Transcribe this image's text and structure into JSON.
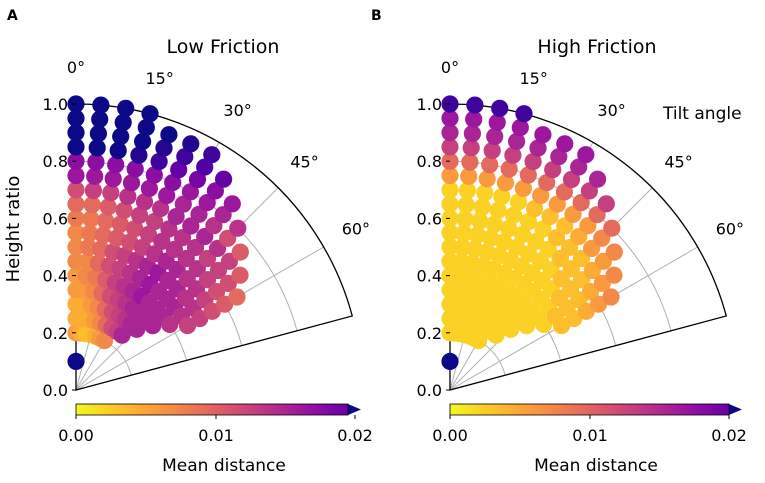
{
  "figure": {
    "y_axis_label": "Height ratio",
    "angle_axis_label": "Tilt angle",
    "radial_ticks": [
      "0.0",
      "0.2",
      "0.4",
      "0.6",
      "0.8",
      "1.0"
    ],
    "angle_ticks": [
      "0°",
      "15°",
      "30°",
      "45°",
      "60°"
    ]
  },
  "colorbar": {
    "label": "Mean distance",
    "ticks": [
      "0.00",
      "0.01",
      "0.02"
    ],
    "range": [
      0,
      0.021
    ],
    "colormap": "plasma"
  },
  "chart_data": [
    {
      "type": "polar-scatter",
      "panel_letter": "A",
      "title": "Low Friction",
      "rlabel": "Height ratio",
      "thetalabel": "Tilt angle",
      "rlim": [
        0,
        1.0
      ],
      "theta_range_deg": [
        0,
        75
      ],
      "theta_values_deg": [
        0,
        5,
        10,
        15,
        20,
        25,
        30,
        35,
        40,
        45,
        50,
        55,
        60
      ],
      "r_values": [
        0.1,
        0.2,
        0.25,
        0.3,
        0.35,
        0.4,
        0.45,
        0.5,
        0.55,
        0.6,
        0.65,
        0.7,
        0.75,
        0.8,
        0.85,
        0.9,
        0.95,
        1.0
      ],
      "color_metric": "Mean distance",
      "rows": [
        {
          "r": 0.1,
          "values": [
            0.021
          ]
        },
        {
          "r": 0.2,
          "values": [
            0.005,
            0.004,
            0.003,
            0.003,
            0.004,
            0.005,
            0.006
          ]
        },
        {
          "r": 0.25,
          "values": [
            0.004,
            0.004,
            0.004,
            0.005,
            0.006,
            0.008,
            0.01,
            0.011,
            0.013
          ]
        },
        {
          "r": 0.3,
          "values": [
            0.004,
            0.004,
            0.005,
            0.006,
            0.008,
            0.01,
            0.011,
            0.012,
            0.013,
            0.013
          ]
        },
        {
          "r": 0.35,
          "values": [
            0.005,
            0.005,
            0.006,
            0.008,
            0.01,
            0.011,
            0.012,
            0.013,
            0.013,
            0.013,
            0.013
          ]
        },
        {
          "r": 0.4,
          "values": [
            0.005,
            0.006,
            0.007,
            0.009,
            0.011,
            0.012,
            0.013,
            0.014,
            0.013,
            0.013,
            0.013,
            0.012
          ]
        },
        {
          "r": 0.45,
          "values": [
            0.006,
            0.006,
            0.008,
            0.01,
            0.011,
            0.012,
            0.013,
            0.014,
            0.013,
            0.013,
            0.013,
            0.012,
            0.011
          ]
        },
        {
          "r": 0.5,
          "values": [
            0.006,
            0.007,
            0.008,
            0.01,
            0.011,
            0.012,
            0.013,
            0.014,
            0.013,
            0.013,
            0.012,
            0.012,
            0.011
          ]
        },
        {
          "r": 0.55,
          "values": [
            0.006,
            0.007,
            0.008,
            0.009,
            0.01,
            0.011,
            0.012,
            0.013,
            0.013,
            0.012,
            0.012,
            0.011,
            0.01
          ]
        },
        {
          "r": 0.6,
          "values": [
            0.007,
            0.007,
            0.008,
            0.009,
            0.01,
            0.011,
            0.012,
            0.012,
            0.012,
            0.012,
            0.011,
            0.01,
            0.009
          ]
        },
        {
          "r": 0.65,
          "values": [
            0.008,
            0.008,
            0.009,
            0.01,
            0.011,
            0.011,
            0.012,
            0.012,
            0.012,
            0.011,
            0.011,
            0.01,
            0.008
          ]
        },
        {
          "r": 0.7,
          "values": [
            0.01,
            0.011,
            0.011,
            0.012,
            0.012,
            0.012,
            0.013,
            0.013,
            0.013,
            0.012,
            0.011,
            0.009
          ]
        },
        {
          "r": 0.75,
          "values": [
            0.014,
            0.014,
            0.014,
            0.014,
            0.014,
            0.014,
            0.013,
            0.013,
            0.012,
            0.01,
            0.009
          ]
        },
        {
          "r": 0.8,
          "values": [
            0.015,
            0.015,
            0.015,
            0.015,
            0.015,
            0.015,
            0.014,
            0.014,
            0.013,
            0.012
          ]
        },
        {
          "r": 0.85,
          "values": [
            0.021,
            0.021,
            0.021,
            0.02,
            0.019,
            0.017,
            0.016,
            0.015,
            0.014
          ]
        },
        {
          "r": 0.9,
          "values": [
            0.021,
            0.021,
            0.021,
            0.021,
            0.02,
            0.019,
            0.018,
            0.017
          ]
        },
        {
          "r": 0.95,
          "values": [
            0.021,
            0.021,
            0.021,
            0.021,
            0.021,
            0.02,
            0.019
          ]
        },
        {
          "r": 1.0,
          "values": [
            0.021,
            0.021,
            0.021,
            0.021
          ]
        }
      ]
    },
    {
      "type": "polar-scatter",
      "panel_letter": "B",
      "title": "High Friction",
      "rlabel": "Height ratio",
      "thetalabel": "Tilt angle",
      "rlim": [
        0,
        1.0
      ],
      "theta_range_deg": [
        0,
        75
      ],
      "theta_values_deg": [
        0,
        5,
        10,
        15,
        20,
        25,
        30,
        35,
        40,
        45,
        50,
        55,
        60
      ],
      "r_values": [
        0.1,
        0.2,
        0.25,
        0.3,
        0.35,
        0.4,
        0.45,
        0.5,
        0.55,
        0.6,
        0.65,
        0.7,
        0.75,
        0.8,
        0.85,
        0.9,
        0.95,
        1.0
      ],
      "color_metric": "Mean distance",
      "rows": [
        {
          "r": 0.1,
          "values": [
            0.021
          ]
        },
        {
          "r": 0.2,
          "values": [
            0.002,
            0.002,
            0.002,
            0.002,
            0.002,
            0.002,
            0.002
          ]
        },
        {
          "r": 0.25,
          "values": [
            0.002,
            0.002,
            0.002,
            0.002,
            0.002,
            0.002,
            0.002,
            0.002,
            0.002
          ]
        },
        {
          "r": 0.3,
          "values": [
            0.002,
            0.002,
            0.002,
            0.002,
            0.002,
            0.002,
            0.002,
            0.002,
            0.002,
            0.002
          ]
        },
        {
          "r": 0.35,
          "values": [
            0.002,
            0.002,
            0.002,
            0.002,
            0.002,
            0.002,
            0.002,
            0.002,
            0.002,
            0.002,
            0.002
          ]
        },
        {
          "r": 0.4,
          "values": [
            0.002,
            0.002,
            0.002,
            0.002,
            0.002,
            0.002,
            0.002,
            0.002,
            0.002,
            0.002,
            0.002,
            0.002
          ]
        },
        {
          "r": 0.45,
          "values": [
            0.002,
            0.002,
            0.002,
            0.002,
            0.002,
            0.002,
            0.002,
            0.002,
            0.002,
            0.002,
            0.002,
            0.003,
            0.003
          ]
        },
        {
          "r": 0.5,
          "values": [
            0.002,
            0.002,
            0.002,
            0.002,
            0.002,
            0.002,
            0.002,
            0.002,
            0.002,
            0.002,
            0.003,
            0.003,
            0.003
          ]
        },
        {
          "r": 0.55,
          "values": [
            0.002,
            0.002,
            0.002,
            0.002,
            0.002,
            0.002,
            0.002,
            0.002,
            0.002,
            0.003,
            0.003,
            0.003,
            0.004
          ]
        },
        {
          "r": 0.6,
          "values": [
            0.002,
            0.002,
            0.002,
            0.002,
            0.002,
            0.002,
            0.002,
            0.002,
            0.003,
            0.003,
            0.003,
            0.004,
            0.005
          ]
        },
        {
          "r": 0.65,
          "values": [
            0.002,
            0.002,
            0.002,
            0.002,
            0.002,
            0.002,
            0.002,
            0.003,
            0.003,
            0.003,
            0.004,
            0.005,
            0.006
          ]
        },
        {
          "r": 0.7,
          "values": [
            0.002,
            0.002,
            0.002,
            0.002,
            0.002,
            0.003,
            0.003,
            0.003,
            0.004,
            0.005,
            0.005,
            0.006
          ]
        },
        {
          "r": 0.75,
          "values": [
            0.005,
            0.005,
            0.005,
            0.005,
            0.005,
            0.005,
            0.005,
            0.005,
            0.005,
            0.006,
            0.006
          ]
        },
        {
          "r": 0.8,
          "values": [
            0.008,
            0.008,
            0.008,
            0.008,
            0.008,
            0.008,
            0.008,
            0.008,
            0.008,
            0.008
          ]
        },
        {
          "r": 0.85,
          "values": [
            0.011,
            0.011,
            0.011,
            0.011,
            0.011,
            0.011,
            0.011,
            0.011,
            0.011
          ]
        },
        {
          "r": 0.9,
          "values": [
            0.013,
            0.013,
            0.013,
            0.013,
            0.013,
            0.013,
            0.013,
            0.013
          ]
        },
        {
          "r": 0.95,
          "values": [
            0.014,
            0.014,
            0.014,
            0.014,
            0.014,
            0.014,
            0.014
          ]
        },
        {
          "r": 1.0,
          "values": [
            0.019,
            0.019,
            0.019,
            0.019
          ]
        }
      ]
    }
  ]
}
